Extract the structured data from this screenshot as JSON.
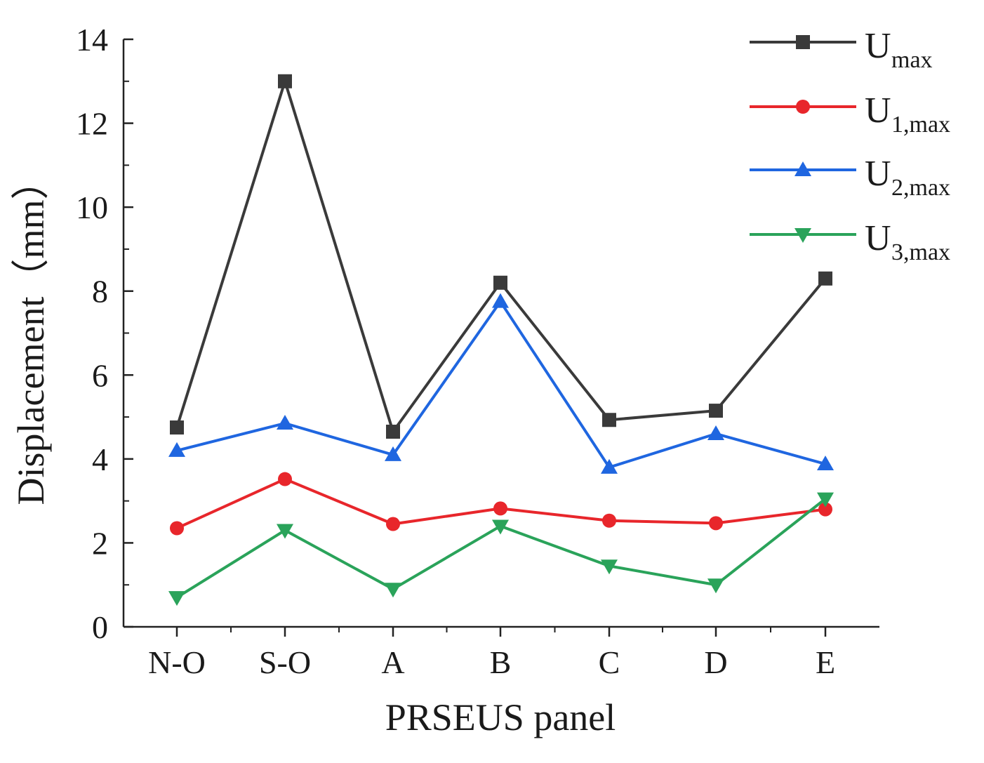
{
  "chart_data": {
    "type": "line",
    "title": "",
    "xlabel": "PRSEUS panel",
    "ylabel": "Displacement（mm）",
    "categories": [
      "N-O",
      "S-O",
      "A",
      "B",
      "C",
      "D",
      "E"
    ],
    "ylim": [
      0,
      14
    ],
    "yticks": [
      0,
      2,
      4,
      6,
      8,
      10,
      12,
      14
    ],
    "legend_position": "top-right",
    "grid": false,
    "series": [
      {
        "name": "U",
        "sub": "max",
        "color": "#3a3a3a",
        "marker": "square",
        "values": [
          4.75,
          13.0,
          4.65,
          8.2,
          4.93,
          5.15,
          8.3
        ]
      },
      {
        "name": "U",
        "sub": "1,max",
        "color": "#e8262b",
        "marker": "circle",
        "values": [
          2.35,
          3.52,
          2.45,
          2.82,
          2.53,
          2.47,
          2.8
        ]
      },
      {
        "name": "U",
        "sub": "2,max",
        "color": "#1f66e0",
        "marker": "triangle-up",
        "values": [
          4.2,
          4.85,
          4.1,
          7.75,
          3.8,
          4.6,
          3.88
        ]
      },
      {
        "name": "U",
        "sub": "3,max",
        "color": "#2aa35a",
        "marker": "triangle-down",
        "values": [
          0.7,
          2.3,
          0.9,
          2.4,
          1.45,
          1.0,
          3.05
        ]
      }
    ]
  }
}
